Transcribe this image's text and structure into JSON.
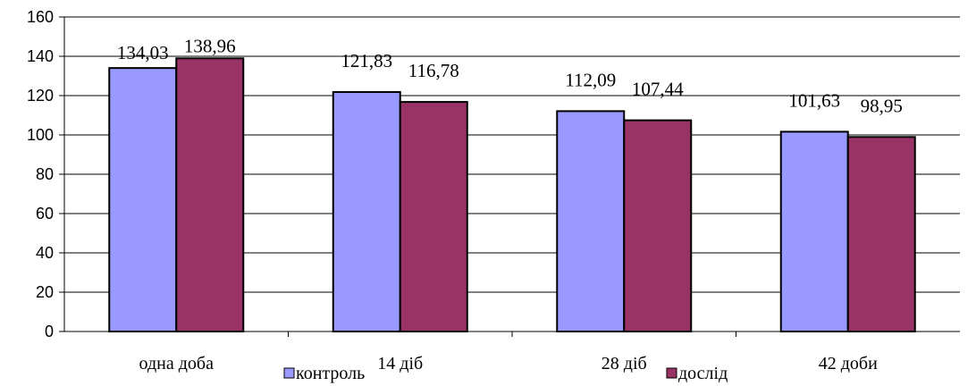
{
  "chart_data": {
    "type": "bar",
    "categories": [
      "одна доба",
      "14 діб",
      "28 діб",
      "42 доби"
    ],
    "series": [
      {
        "name": "контроль",
        "values": [
          134.03,
          121.83,
          112.09,
          101.63
        ],
        "labels": [
          "134,03",
          "121,83",
          "112,09",
          "101,63"
        ],
        "color": "#9999ff"
      },
      {
        "name": "дослід",
        "values": [
          138.96,
          116.78,
          107.44,
          98.95
        ],
        "labels": [
          "138,96",
          "116,78",
          "107,44",
          "98,95"
        ],
        "color": "#993366"
      }
    ],
    "ylim": [
      0,
      160
    ],
    "yticks": [
      0,
      20,
      40,
      60,
      80,
      100,
      120,
      140,
      160
    ],
    "grid": true,
    "legend": "bottom"
  }
}
